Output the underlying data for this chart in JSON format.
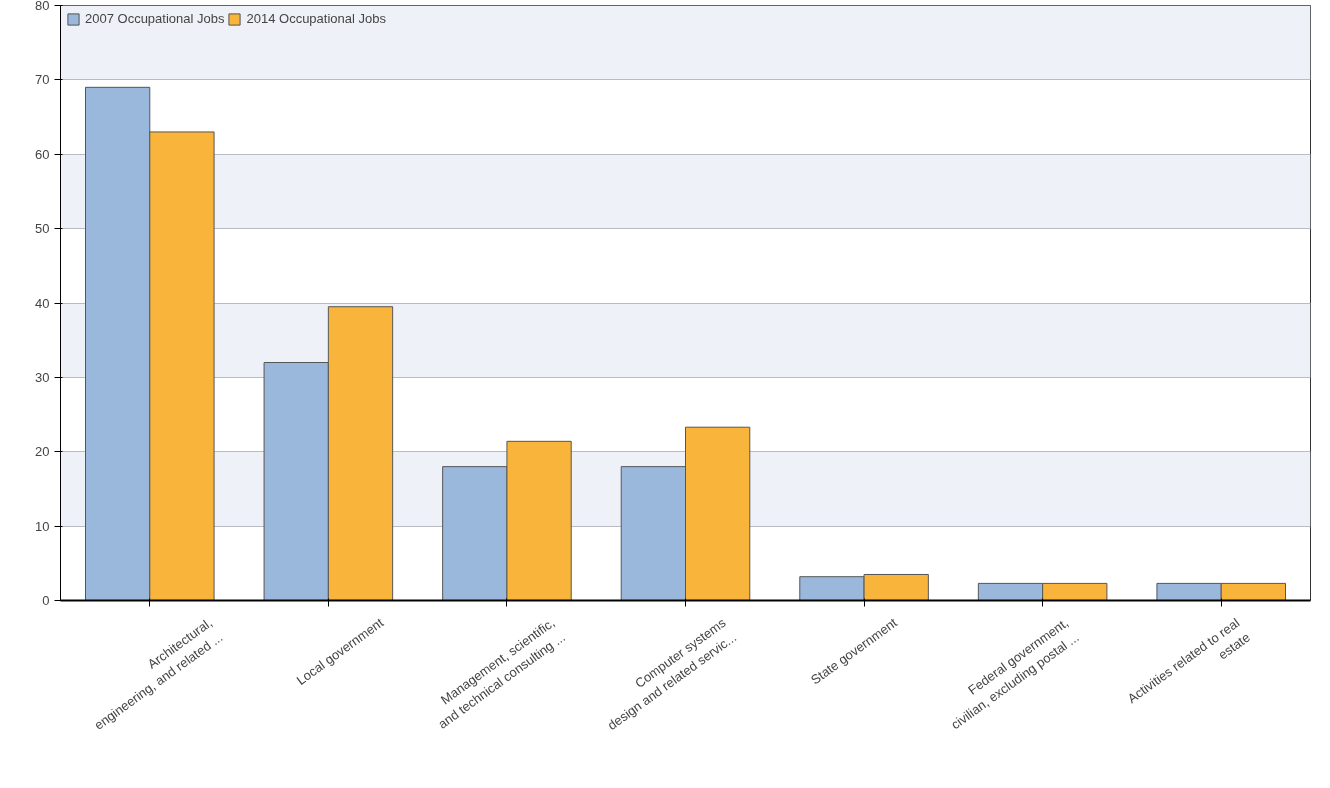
{
  "chart_data": {
    "type": "bar",
    "categories": [
      "Architectural,\nengineering, and related ...",
      "Local government",
      "Management, scientific,\nand technical consulting ...",
      "Computer systems\ndesign and related servic...",
      "State government",
      "Federal government,\ncivilian, excluding postal ...",
      "Activities related to real\nestate"
    ],
    "series": [
      {
        "name": "2007 Occupational Jobs",
        "color": "#9ab8dc",
        "values": [
          69,
          32,
          18,
          18,
          3.2,
          2.3,
          2.3
        ]
      },
      {
        "name": "2014 Occupational Jobs",
        "color": "#f9b43c",
        "values": [
          63,
          39.5,
          21.4,
          23.3,
          3.5,
          2.3,
          2.3
        ]
      }
    ],
    "ylim": [
      0,
      80
    ],
    "yticks": [
      0,
      10,
      20,
      30,
      40,
      50,
      60,
      70,
      80
    ],
    "grid": "y",
    "legend": "top left"
  }
}
